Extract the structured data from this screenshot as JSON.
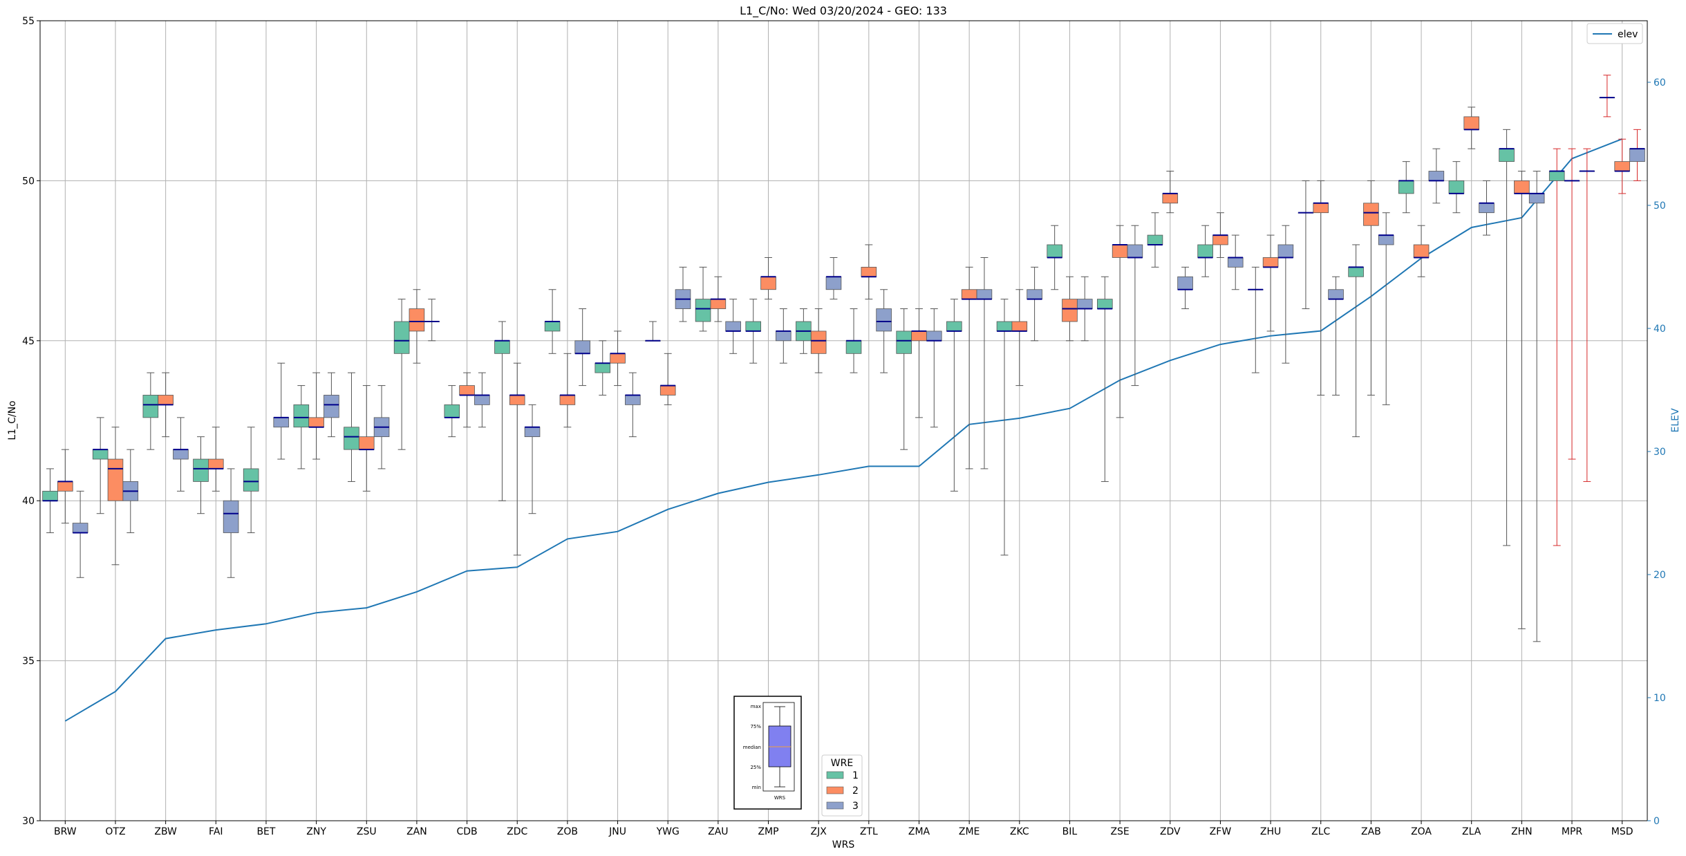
{
  "chart_data": {
    "type": "box",
    "title": "L1_C/No: Wed 03/20/2024 - GEO: 133",
    "xlabel": "WRS",
    "ylabel": "L1_C/No",
    "y2label": "ELEV",
    "ylim": [
      30,
      55
    ],
    "y2lim": [
      0,
      65
    ],
    "yticks": [
      "30",
      "35",
      "40",
      "45",
      "50",
      "55"
    ],
    "y2ticks": [
      "0",
      "10",
      "20",
      "30",
      "40",
      "50",
      "60"
    ],
    "grid": true,
    "categories": [
      "BRW",
      "OTZ",
      "ZBW",
      "FAI",
      "BET",
      "ZNY",
      "ZSU",
      "ZAN",
      "CDB",
      "ZDC",
      "ZOB",
      "JNU",
      "YWG",
      "ZAU",
      "ZMP",
      "ZJX",
      "ZTL",
      "ZMA",
      "ZME",
      "ZKC",
      "BIL",
      "ZSE",
      "ZDV",
      "ZFW",
      "ZHU",
      "ZLC",
      "ZAB",
      "ZOA",
      "ZLA",
      "ZHN",
      "MPR",
      "MSD"
    ],
    "legend_elev": {
      "label": "elev",
      "position": "top-right"
    },
    "legend_wre": {
      "title": "WRE",
      "entries": [
        "1",
        "2",
        "3"
      ],
      "position": "bottom-center"
    },
    "legend_inset": {
      "labels": [
        "max",
        "75%",
        "median",
        "25%",
        "min"
      ],
      "xlabel": "WRS"
    },
    "colors": {
      "1": "#66c2a5",
      "2": "#fc8d62",
      "3": "#8da0cb",
      "median": "#00008b",
      "whisker": "#555555",
      "elev": "#1f77b4",
      "grid": "#b0b0b0",
      "red_whisker": "#d62728"
    },
    "elev_series": {
      "name": "elev",
      "values": [
        8.1,
        10.5,
        14.8,
        15.5,
        16.0,
        16.9,
        17.3,
        18.6,
        20.3,
        20.6,
        22.9,
        23.5,
        25.3,
        26.6,
        27.5,
        28.1,
        28.8,
        28.8,
        32.2,
        32.7,
        33.5,
        35.8,
        37.4,
        38.7,
        39.4,
        39.8,
        42.6,
        45.7,
        48.2,
        49.0,
        53.8,
        55.4
      ]
    },
    "boxes": [
      {
        "cat": "BRW",
        "wre": 1,
        "min": 39.0,
        "q1": 40.0,
        "median": 40.0,
        "q3": 40.3,
        "max": 41.0
      },
      {
        "cat": "BRW",
        "wre": 2,
        "min": 39.3,
        "q1": 40.3,
        "median": 40.6,
        "q3": 40.6,
        "max": 41.6
      },
      {
        "cat": "BRW",
        "wre": 3,
        "min": 37.6,
        "q1": 39.0,
        "median": 39.0,
        "q3": 39.3,
        "max": 40.3
      },
      {
        "cat": "OTZ",
        "wre": 1,
        "min": 39.6,
        "q1": 41.3,
        "median": 41.6,
        "q3": 41.6,
        "max": 42.6
      },
      {
        "cat": "OTZ",
        "wre": 2,
        "min": 38.0,
        "q1": 40.0,
        "median": 41.0,
        "q3": 41.3,
        "max": 42.3
      },
      {
        "cat": "OTZ",
        "wre": 3,
        "min": 39.0,
        "q1": 40.0,
        "median": 40.3,
        "q3": 40.6,
        "max": 41.6
      },
      {
        "cat": "ZBW",
        "wre": 1,
        "min": 41.6,
        "q1": 42.6,
        "median": 43.0,
        "q3": 43.3,
        "max": 44.0
      },
      {
        "cat": "ZBW",
        "wre": 2,
        "min": 42.0,
        "q1": 43.0,
        "median": 43.0,
        "q3": 43.3,
        "max": 44.0
      },
      {
        "cat": "ZBW",
        "wre": 3,
        "min": 40.3,
        "q1": 41.3,
        "median": 41.6,
        "q3": 41.6,
        "max": 42.6
      },
      {
        "cat": "FAI",
        "wre": 1,
        "min": 39.6,
        "q1": 40.6,
        "median": 41.0,
        "q3": 41.3,
        "max": 42.0
      },
      {
        "cat": "FAI",
        "wre": 2,
        "min": 40.3,
        "q1": 41.0,
        "median": 41.0,
        "q3": 41.3,
        "max": 42.3
      },
      {
        "cat": "FAI",
        "wre": 3,
        "min": 37.6,
        "q1": 39.0,
        "median": 39.6,
        "q3": 40.0,
        "max": 41.0
      },
      {
        "cat": "BET",
        "wre": 1,
        "min": 39.0,
        "q1": 40.3,
        "median": 40.6,
        "q3": 41.0,
        "max": 42.3
      },
      {
        "cat": "BET",
        "wre": 3,
        "min": 41.3,
        "q1": 42.3,
        "median": 42.6,
        "q3": 42.6,
        "max": 44.3
      },
      {
        "cat": "ZNY",
        "wre": 1,
        "min": 41.0,
        "q1": 42.3,
        "median": 42.6,
        "q3": 43.0,
        "max": 43.6
      },
      {
        "cat": "ZNY",
        "wre": 2,
        "min": 41.3,
        "q1": 42.3,
        "median": 42.3,
        "q3": 42.6,
        "max": 44.0
      },
      {
        "cat": "ZNY",
        "wre": 3,
        "min": 42.0,
        "q1": 42.6,
        "median": 43.0,
        "q3": 43.3,
        "max": 44.0
      },
      {
        "cat": "ZSU",
        "wre": 1,
        "min": 40.6,
        "q1": 41.6,
        "median": 42.0,
        "q3": 42.3,
        "max": 44.0
      },
      {
        "cat": "ZSU",
        "wre": 2,
        "min": 40.3,
        "q1": 41.6,
        "median": 41.6,
        "q3": 42.0,
        "max": 43.6
      },
      {
        "cat": "ZSU",
        "wre": 3,
        "min": 41.0,
        "q1": 42.0,
        "median": 42.3,
        "q3": 42.6,
        "max": 43.6
      },
      {
        "cat": "ZAN",
        "wre": 1,
        "min": 41.6,
        "q1": 44.6,
        "median": 45.0,
        "q3": 45.6,
        "max": 46.3
      },
      {
        "cat": "ZAN",
        "wre": 2,
        "min": 44.3,
        "q1": 45.3,
        "median": 45.6,
        "q3": 46.0,
        "max": 46.6
      },
      {
        "cat": "ZAN",
        "wre": 3,
        "min": 45.0,
        "q1": 45.6,
        "median": 45.6,
        "q3": 45.6,
        "max": 46.3
      },
      {
        "cat": "CDB",
        "wre": 1,
        "min": 42.0,
        "q1": 42.6,
        "median": 42.6,
        "q3": 43.0,
        "max": 43.6
      },
      {
        "cat": "CDB",
        "wre": 2,
        "min": 42.3,
        "q1": 43.3,
        "median": 43.3,
        "q3": 43.6,
        "max": 44.0
      },
      {
        "cat": "CDB",
        "wre": 3,
        "min": 42.3,
        "q1": 43.0,
        "median": 43.3,
        "q3": 43.3,
        "max": 44.0
      },
      {
        "cat": "ZDC",
        "wre": 1,
        "min": 40.0,
        "q1": 44.6,
        "median": 45.0,
        "q3": 45.0,
        "max": 45.6
      },
      {
        "cat": "ZDC",
        "wre": 2,
        "min": 38.3,
        "q1": 43.0,
        "median": 43.3,
        "q3": 43.3,
        "max": 44.3
      },
      {
        "cat": "ZDC",
        "wre": 3,
        "min": 39.6,
        "q1": 42.0,
        "median": 42.3,
        "q3": 42.3,
        "max": 43.0
      },
      {
        "cat": "ZOB",
        "wre": 1,
        "min": 44.6,
        "q1": 45.3,
        "median": 45.6,
        "q3": 45.6,
        "max": 46.6
      },
      {
        "cat": "ZOB",
        "wre": 2,
        "min": 42.3,
        "q1": 43.0,
        "median": 43.3,
        "q3": 43.3,
        "max": 44.6
      },
      {
        "cat": "ZOB",
        "wre": 3,
        "min": 43.6,
        "q1": 44.6,
        "median": 44.6,
        "q3": 45.0,
        "max": 46.0
      },
      {
        "cat": "JNU",
        "wre": 1,
        "min": 43.3,
        "q1": 44.0,
        "median": 44.3,
        "q3": 44.3,
        "max": 45.0
      },
      {
        "cat": "JNU",
        "wre": 2,
        "min": 43.6,
        "q1": 44.3,
        "median": 44.6,
        "q3": 44.6,
        "max": 45.3
      },
      {
        "cat": "JNU",
        "wre": 3,
        "min": 42.0,
        "q1": 43.0,
        "median": 43.3,
        "q3": 43.3,
        "max": 44.0
      },
      {
        "cat": "YWG",
        "wre": 1,
        "min": 45.0,
        "q1": 45.0,
        "median": 45.0,
        "q3": 45.0,
        "max": 45.6
      },
      {
        "cat": "YWG",
        "wre": 2,
        "min": 43.0,
        "q1": 43.3,
        "median": 43.6,
        "q3": 43.6,
        "max": 44.6
      },
      {
        "cat": "YWG",
        "wre": 3,
        "min": 45.6,
        "q1": 46.0,
        "median": 46.3,
        "q3": 46.6,
        "max": 47.3
      },
      {
        "cat": "ZAU",
        "wre": 1,
        "min": 45.3,
        "q1": 45.6,
        "median": 46.0,
        "q3": 46.3,
        "max": 47.3
      },
      {
        "cat": "ZAU",
        "wre": 2,
        "min": 45.6,
        "q1": 46.0,
        "median": 46.3,
        "q3": 46.3,
        "max": 47.0
      },
      {
        "cat": "ZAU",
        "wre": 3,
        "min": 44.6,
        "q1": 45.3,
        "median": 45.3,
        "q3": 45.6,
        "max": 46.3
      },
      {
        "cat": "ZMP",
        "wre": 1,
        "min": 44.3,
        "q1": 45.3,
        "median": 45.3,
        "q3": 45.6,
        "max": 46.3
      },
      {
        "cat": "ZMP",
        "wre": 2,
        "min": 46.3,
        "q1": 46.6,
        "median": 47.0,
        "q3": 47.0,
        "max": 47.6
      },
      {
        "cat": "ZMP",
        "wre": 3,
        "min": 44.3,
        "q1": 45.0,
        "median": 45.3,
        "q3": 45.3,
        "max": 46.0
      },
      {
        "cat": "ZJX",
        "wre": 1,
        "min": 44.6,
        "q1": 45.0,
        "median": 45.3,
        "q3": 45.6,
        "max": 46.0
      },
      {
        "cat": "ZJX",
        "wre": 2,
        "min": 44.0,
        "q1": 44.6,
        "median": 45.0,
        "q3": 45.3,
        "max": 46.0
      },
      {
        "cat": "ZJX",
        "wre": 3,
        "min": 46.3,
        "q1": 46.6,
        "median": 47.0,
        "q3": 47.0,
        "max": 47.6
      },
      {
        "cat": "ZTL",
        "wre": 1,
        "min": 44.0,
        "q1": 44.6,
        "median": 45.0,
        "q3": 45.0,
        "max": 46.0
      },
      {
        "cat": "ZTL",
        "wre": 2,
        "min": 46.3,
        "q1": 47.0,
        "median": 47.0,
        "q3": 47.3,
        "max": 48.0
      },
      {
        "cat": "ZTL",
        "wre": 3,
        "min": 44.0,
        "q1": 45.3,
        "median": 45.6,
        "q3": 46.0,
        "max": 46.6
      },
      {
        "cat": "ZMA",
        "wre": 1,
        "min": 41.6,
        "q1": 44.6,
        "median": 45.0,
        "q3": 45.3,
        "max": 46.0
      },
      {
        "cat": "ZMA",
        "wre": 2,
        "min": 42.6,
        "q1": 45.0,
        "median": 45.3,
        "q3": 45.3,
        "max": 46.0
      },
      {
        "cat": "ZMA",
        "wre": 3,
        "min": 42.3,
        "q1": 45.0,
        "median": 45.0,
        "q3": 45.3,
        "max": 46.0
      },
      {
        "cat": "ZME",
        "wre": 1,
        "min": 40.3,
        "q1": 45.3,
        "median": 45.3,
        "q3": 45.6,
        "max": 46.3
      },
      {
        "cat": "ZME",
        "wre": 2,
        "min": 41.0,
        "q1": 46.3,
        "median": 46.3,
        "q3": 46.6,
        "max": 47.3
      },
      {
        "cat": "ZME",
        "wre": 3,
        "min": 41.0,
        "q1": 46.3,
        "median": 46.3,
        "q3": 46.6,
        "max": 47.6
      },
      {
        "cat": "ZKC",
        "wre": 1,
        "min": 38.3,
        "q1": 45.3,
        "median": 45.3,
        "q3": 45.6,
        "max": 46.3
      },
      {
        "cat": "ZKC",
        "wre": 2,
        "min": 43.6,
        "q1": 45.3,
        "median": 45.3,
        "q3": 45.6,
        "max": 46.6
      },
      {
        "cat": "ZKC",
        "wre": 3,
        "min": 45.0,
        "q1": 46.3,
        "median": 46.3,
        "q3": 46.6,
        "max": 47.3
      },
      {
        "cat": "BIL",
        "wre": 1,
        "min": 46.6,
        "q1": 47.6,
        "median": 47.6,
        "q3": 48.0,
        "max": 48.6
      },
      {
        "cat": "BIL",
        "wre": 2,
        "min": 45.0,
        "q1": 45.6,
        "median": 46.0,
        "q3": 46.3,
        "max": 47.0
      },
      {
        "cat": "BIL",
        "wre": 3,
        "min": 45.0,
        "q1": 46.0,
        "median": 46.0,
        "q3": 46.3,
        "max": 47.0
      },
      {
        "cat": "ZSE",
        "wre": 1,
        "min": 40.6,
        "q1": 46.0,
        "median": 46.0,
        "q3": 46.3,
        "max": 47.0
      },
      {
        "cat": "ZSE",
        "wre": 2,
        "min": 42.6,
        "q1": 47.6,
        "median": 48.0,
        "q3": 48.0,
        "max": 48.6
      },
      {
        "cat": "ZSE",
        "wre": 3,
        "min": 43.6,
        "q1": 47.6,
        "median": 47.6,
        "q3": 48.0,
        "max": 48.6
      },
      {
        "cat": "ZDV",
        "wre": 1,
        "min": 47.3,
        "q1": 48.0,
        "median": 48.0,
        "q3": 48.3,
        "max": 49.0
      },
      {
        "cat": "ZDV",
        "wre": 2,
        "min": 49.0,
        "q1": 49.3,
        "median": 49.6,
        "q3": 49.6,
        "max": 50.3
      },
      {
        "cat": "ZDV",
        "wre": 3,
        "min": 46.0,
        "q1": 46.6,
        "median": 46.6,
        "q3": 47.0,
        "max": 47.3
      },
      {
        "cat": "ZFW",
        "wre": 1,
        "min": 47.0,
        "q1": 47.6,
        "median": 47.6,
        "q3": 48.0,
        "max": 48.6
      },
      {
        "cat": "ZFW",
        "wre": 2,
        "min": 47.6,
        "q1": 48.0,
        "median": 48.3,
        "q3": 48.3,
        "max": 49.0
      },
      {
        "cat": "ZFW",
        "wre": 3,
        "min": 46.6,
        "q1": 47.3,
        "median": 47.6,
        "q3": 47.6,
        "max": 48.3
      },
      {
        "cat": "ZHU",
        "wre": 1,
        "min": 44.0,
        "q1": 46.6,
        "median": 46.6,
        "q3": 46.6,
        "max": 47.3
      },
      {
        "cat": "ZHU",
        "wre": 2,
        "min": 45.3,
        "q1": 47.3,
        "median": 47.3,
        "q3": 47.6,
        "max": 48.3
      },
      {
        "cat": "ZHU",
        "wre": 3,
        "min": 44.3,
        "q1": 47.6,
        "median": 47.6,
        "q3": 48.0,
        "max": 48.6
      },
      {
        "cat": "ZLC",
        "wre": 1,
        "min": 46.0,
        "q1": 49.0,
        "median": 49.0,
        "q3": 49.0,
        "max": 50.0
      },
      {
        "cat": "ZLC",
        "wre": 2,
        "min": 43.3,
        "q1": 49.0,
        "median": 49.3,
        "q3": 49.3,
        "max": 50.0
      },
      {
        "cat": "ZLC",
        "wre": 3,
        "min": 43.3,
        "q1": 46.3,
        "median": 46.3,
        "q3": 46.6,
        "max": 47.0
      },
      {
        "cat": "ZAB",
        "wre": 1,
        "min": 42.0,
        "q1": 47.0,
        "median": 47.3,
        "q3": 47.3,
        "max": 48.0
      },
      {
        "cat": "ZAB",
        "wre": 2,
        "min": 43.3,
        "q1": 48.6,
        "median": 49.0,
        "q3": 49.3,
        "max": 50.0
      },
      {
        "cat": "ZAB",
        "wre": 3,
        "min": 43.0,
        "q1": 48.0,
        "median": 48.3,
        "q3": 48.3,
        "max": 49.0
      },
      {
        "cat": "ZOA",
        "wre": 1,
        "min": 49.0,
        "q1": 49.6,
        "median": 50.0,
        "q3": 50.0,
        "max": 50.6
      },
      {
        "cat": "ZOA",
        "wre": 2,
        "min": 47.0,
        "q1": 47.6,
        "median": 47.6,
        "q3": 48.0,
        "max": 48.6
      },
      {
        "cat": "ZOA",
        "wre": 3,
        "min": 49.3,
        "q1": 50.0,
        "median": 50.0,
        "q3": 50.3,
        "max": 51.0
      },
      {
        "cat": "ZLA",
        "wre": 1,
        "min": 49.0,
        "q1": 49.6,
        "median": 49.6,
        "q3": 50.0,
        "max": 50.6
      },
      {
        "cat": "ZLA",
        "wre": 2,
        "min": 51.0,
        "q1": 51.6,
        "median": 51.6,
        "q3": 52.0,
        "max": 52.3
      },
      {
        "cat": "ZLA",
        "wre": 3,
        "min": 48.3,
        "q1": 49.0,
        "median": 49.3,
        "q3": 49.3,
        "max": 50.0
      },
      {
        "cat": "ZHN",
        "wre": 1,
        "min": 38.6,
        "q1": 50.6,
        "median": 51.0,
        "q3": 51.0,
        "max": 51.6
      },
      {
        "cat": "ZHN",
        "wre": 2,
        "min": 36.0,
        "q1": 49.6,
        "median": 49.6,
        "q3": 50.0,
        "max": 50.3
      },
      {
        "cat": "ZHN",
        "wre": 3,
        "min": 35.6,
        "q1": 49.3,
        "median": 49.6,
        "q3": 49.6,
        "max": 50.3
      },
      {
        "cat": "MPR",
        "wre": 1,
        "min": 38.6,
        "q1": 50.0,
        "median": 50.3,
        "q3": 50.3,
        "max": 51.0,
        "red": true
      },
      {
        "cat": "MPR",
        "wre": 2,
        "min": 41.3,
        "q1": 50.0,
        "median": 50.0,
        "q3": 50.0,
        "max": 51.0,
        "red": true
      },
      {
        "cat": "MPR",
        "wre": 3,
        "min": 40.6,
        "q1": 50.3,
        "median": 50.3,
        "q3": 50.3,
        "max": 51.0,
        "red": true
      },
      {
        "cat": "MSD",
        "wre": 1,
        "min": 52.0,
        "q1": 52.6,
        "median": 52.6,
        "q3": 52.6,
        "max": 53.3,
        "red": true
      },
      {
        "cat": "MSD",
        "wre": 2,
        "min": 49.6,
        "q1": 50.3,
        "median": 50.3,
        "q3": 50.6,
        "max": 51.3,
        "red": true
      },
      {
        "cat": "MSD",
        "wre": 3,
        "min": 50.0,
        "q1": 50.6,
        "median": 51.0,
        "q3": 51.0,
        "max": 51.6,
        "red": true
      }
    ]
  }
}
